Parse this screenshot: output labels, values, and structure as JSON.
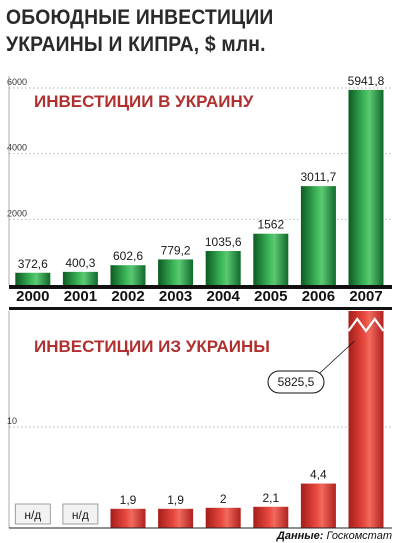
{
  "title": "ОБОЮДНЫЕ ИНВЕСТИЦИИ УКРАИНЫ И КИПРА, $ млн.",
  "source": {
    "label": "Данные:",
    "name": "Госкомстат"
  },
  "colors": {
    "green": "#1f8a3a",
    "red": "#d4302c",
    "subtitle": "#b0302f"
  },
  "chart_data": [
    {
      "type": "bar",
      "subtitle": "ИНВЕСТИЦИИ В УКРАИНУ",
      "categories": [
        "2000",
        "2001",
        "2002",
        "2003",
        "2004",
        "2005",
        "2006",
        "2007"
      ],
      "values": [
        372.6,
        400.3,
        602.6,
        779.2,
        1035.6,
        1562,
        3011.7,
        5941.8
      ],
      "labels": [
        "372,6",
        "400,3",
        "602,6",
        "779,2",
        "1035,6",
        "1562",
        "3011,7",
        "5941,8"
      ],
      "yticks": [
        {
          "value": 2000,
          "label": "2000"
        },
        {
          "value": 4000,
          "label": "4000"
        },
        {
          "value": 6000,
          "label": "6000"
        }
      ],
      "ylim": [
        0,
        6000
      ],
      "color": "green"
    },
    {
      "type": "bar",
      "subtitle": "ИНВЕСТИЦИИ ИЗ УКРАИНЫ",
      "categories": [
        "2000",
        "2001",
        "2002",
        "2003",
        "2004",
        "2005",
        "2006",
        "2007"
      ],
      "values": [
        null,
        null,
        1.9,
        1.9,
        2,
        2.1,
        4.4,
        5825.5
      ],
      "labels": [
        "н/д",
        "н/д",
        "1,9",
        "1,9",
        "2",
        "2,1",
        "4,4",
        "5825,5"
      ],
      "yticks": [
        {
          "value": 10,
          "label": "10"
        }
      ],
      "ylim": [
        0,
        20
      ],
      "axis_break": "2007",
      "color": "red"
    }
  ]
}
